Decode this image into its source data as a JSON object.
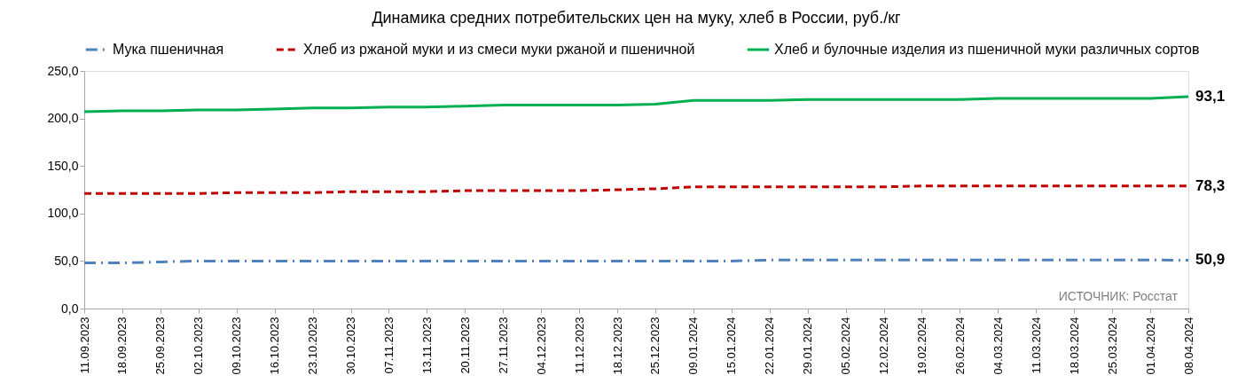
{
  "chart_data": {
    "type": "line",
    "title": "Динамика средних потребительских цен на муку, хлеб в России, руб./кг",
    "categories": [
      "11.09.2023",
      "18.09.2023",
      "25.09.2023",
      "02.10.2023",
      "09.10.2023",
      "16.10.2023",
      "23.10.2023",
      "30.10.2023",
      "07.11.2023",
      "13.11.2023",
      "20.11.2023",
      "27.11.2023",
      "04.12.2023",
      "11.12.2023",
      "18.12.2023",
      "25.12.2023",
      "09.01.2024",
      "15.01.2024",
      "22.01.2024",
      "29.01.2024",
      "05.02.2024",
      "12.02.2024",
      "19.02.2024",
      "26.02.2024",
      "04.03.2024",
      "11.03.2024",
      "18.03.2024",
      "25.03.2024",
      "01.04.2024",
      "08.04.2024"
    ],
    "series": [
      {
        "name": "Мука пшеничная",
        "color": "#4f81bd",
        "line_style": "dashdot",
        "values": [
          48,
          48,
          49,
          50,
          50,
          50,
          50,
          50,
          50,
          50,
          50,
          50,
          50,
          50,
          50,
          50,
          50,
          50,
          51,
          51,
          51,
          51,
          51,
          51,
          51,
          51,
          51,
          51,
          51,
          50.9
        ]
      },
      {
        "name": "Хлеб из ржаной муки и из смеси муки ржаной и пшеничной",
        "color": "#c00000",
        "line_style": "dashed",
        "values": [
          121,
          121,
          121,
          121,
          122,
          122,
          122,
          123,
          123,
          123,
          124,
          124,
          124,
          124,
          125,
          126,
          128,
          128,
          128,
          128,
          128,
          128,
          129,
          129,
          129,
          129,
          129,
          129,
          129,
          129
        ]
      },
      {
        "name": "Хлеб и булочные изделия из пшеничной муки различных сортов",
        "color": "#00b050",
        "line_style": "solid",
        "values": [
          207,
          208,
          208,
          209,
          209,
          210,
          211,
          211,
          212,
          212,
          213,
          214,
          214,
          214,
          214,
          215,
          219,
          219,
          219,
          220,
          220,
          220,
          220,
          220,
          221,
          221,
          221,
          221,
          221,
          223
        ]
      }
    ],
    "ylim": [
      0,
      250
    ],
    "yticks": [
      {
        "value": 0,
        "label": "0,0"
      },
      {
        "value": 50,
        "label": "50,0"
      },
      {
        "value": 100,
        "label": "100,0"
      },
      {
        "value": 150,
        "label": "150,0"
      },
      {
        "value": 200,
        "label": "200,0"
      },
      {
        "value": 250,
        "label": "250,0"
      }
    ],
    "legend": "top",
    "annotations": [
      "ИСТОЧНИК: Росстат",
      {
        "text": "93,1",
        "x": "08.04.2024",
        "y": 223
      },
      {
        "text": "78,3",
        "x": "08.04.2024",
        "y": 129
      },
      {
        "text": "50,9",
        "x": "08.04.2024",
        "y": 50.9
      }
    ]
  }
}
